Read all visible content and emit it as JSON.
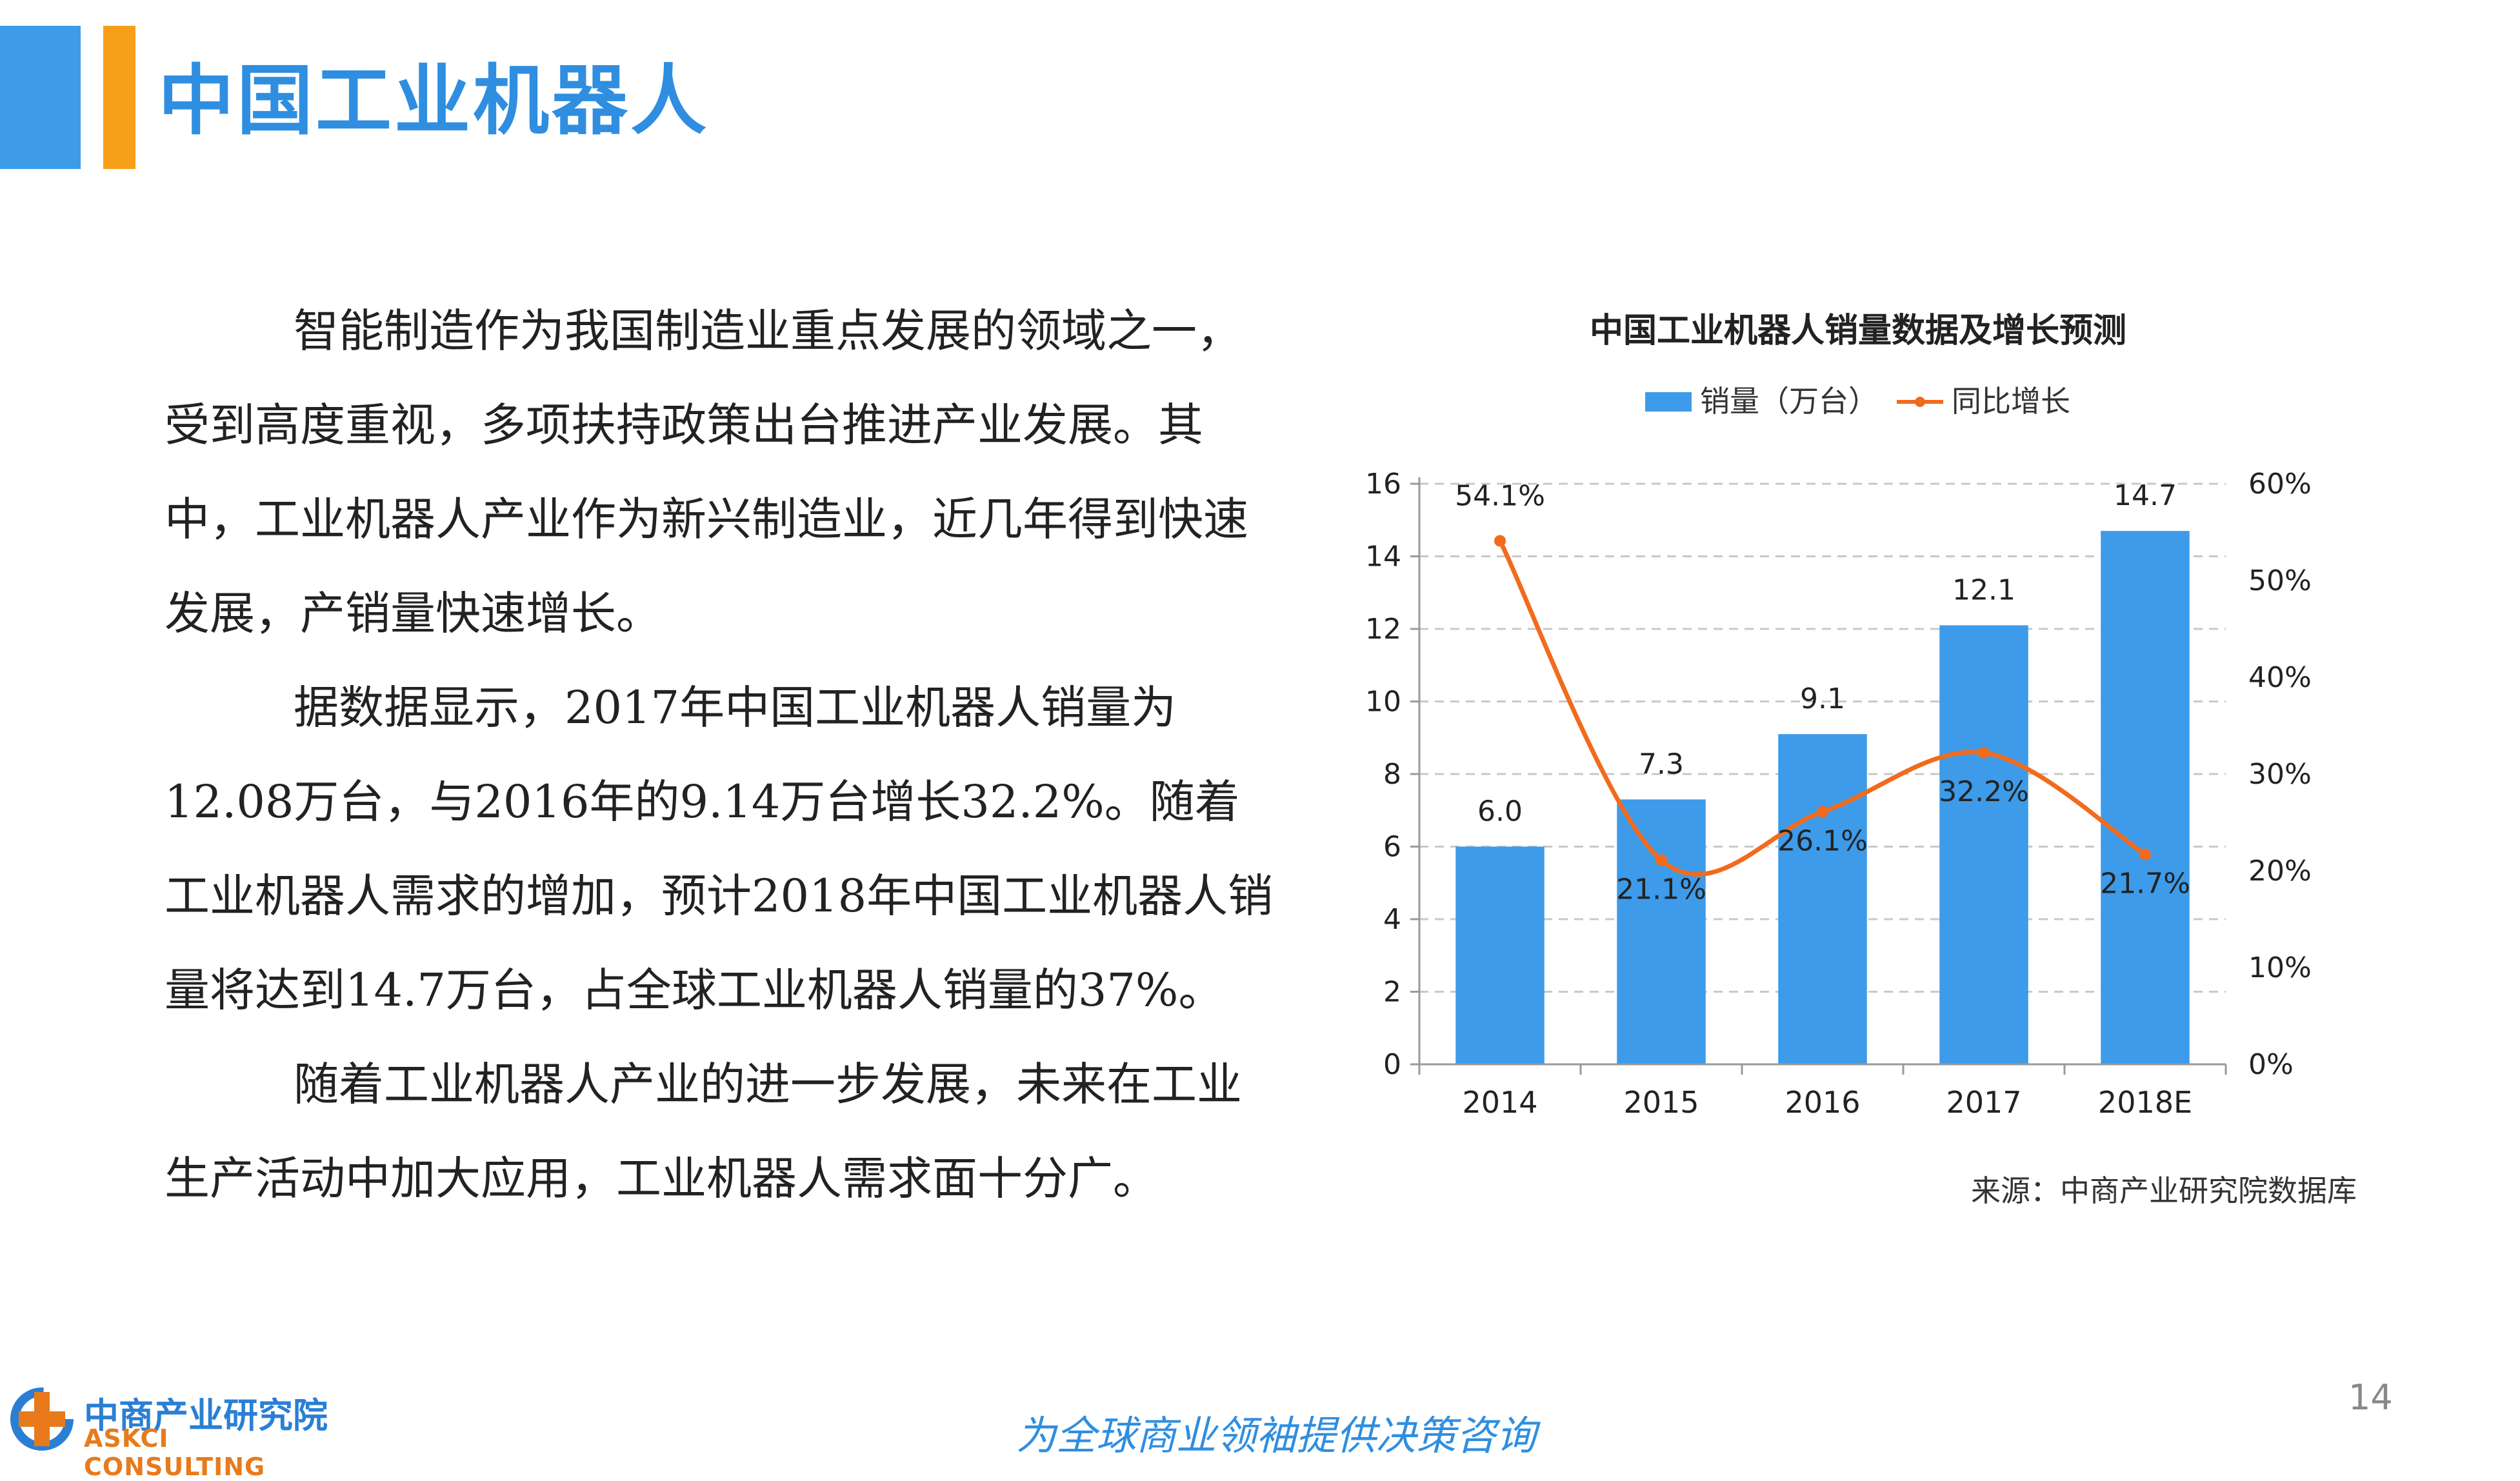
{
  "header": {
    "title": "中国工业机器人"
  },
  "body": {
    "paragraphs": [
      "智能制造作为我国制造业重点发展的领域之一，受到高度重视，多项扶持政策出台推进产业发展。其中，工业机器人产业作为新兴制造业，近几年得到快速发展，产销量快速增长。",
      "据数据显示，2017年中国工业机器人销量为12.08万台，与2016年的9.14万台增长32.2%。随着工业机器人需求的增加，预计2018年中国工业机器人销量将达到14.7万台，占全球工业机器人销量的37%。",
      "随着工业机器人产业的进一步发展，未来在工业生产活动中加大应用，工业机器人需求面十分广。"
    ]
  },
  "chart_data": {
    "type": "bar",
    "title": "中国工业机器人销量数据及增长预测",
    "categories": [
      "2014",
      "2015",
      "2016",
      "2017",
      "2018E"
    ],
    "series": [
      {
        "name": "销量（万台）",
        "type": "bar",
        "axis": "left",
        "color": "#3d9be9",
        "values": [
          6.0,
          7.3,
          9.1,
          12.1,
          14.7
        ],
        "labels": [
          "6.0",
          "7.3",
          "9.1",
          "12.1",
          "14.7"
        ]
      },
      {
        "name": "同比增长",
        "type": "line",
        "axis": "right",
        "color": "#f26b1d",
        "values": [
          54.1,
          21.1,
          26.1,
          32.2,
          21.7
        ],
        "labels": [
          "54.1%",
          "21.1%",
          "26.1%",
          "32.2%",
          "21.7%"
        ]
      }
    ],
    "y_left": {
      "min": 0,
      "max": 16,
      "ticks": [
        "0",
        "2",
        "4",
        "6",
        "8",
        "10",
        "12",
        "14",
        "16"
      ]
    },
    "y_right": {
      "min": 0,
      "max": 60,
      "ticks": [
        "0%",
        "10%",
        "20%",
        "30%",
        "40%",
        "50%",
        "60%"
      ]
    },
    "legend_position": "top",
    "grid": true
  },
  "source": "来源：中商产业研究院数据库",
  "page_number": "14",
  "footer": {
    "slogan": "为全球商业领袖提供决策咨询",
    "logo_cn": "中商产业研究院",
    "logo_en": "ASKCI CONSULTING"
  }
}
